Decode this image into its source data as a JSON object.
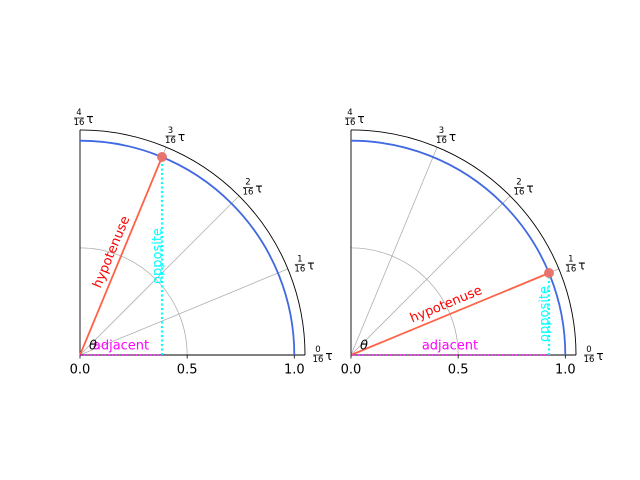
{
  "chart_data": [
    {
      "type": "polar-quarter",
      "theta_tick_labels": [
        {
          "num": "0",
          "den": "16",
          "unit": "τ",
          "fraction": 0
        },
        {
          "num": "1",
          "den": "16",
          "unit": "τ",
          "fraction": 0.0625
        },
        {
          "num": "2",
          "den": "16",
          "unit": "τ",
          "fraction": 0.125
        },
        {
          "num": "3",
          "den": "16",
          "unit": "τ",
          "fraction": 0.1875
        },
        {
          "num": "4",
          "den": "16",
          "unit": "τ",
          "fraction": 0.25
        }
      ],
      "r_tick_labels": [
        "0.0",
        "0.5",
        "1.0"
      ],
      "r_ticks": [
        0,
        0.5,
        1.0
      ],
      "rlim": [
        0,
        1.05
      ],
      "unit_circle_radius": 1.0,
      "theta_marker_radius": 0.5,
      "point": {
        "r": 1.0,
        "theta_deg": 67.5
      },
      "labels": {
        "theta": "θ",
        "hypotenuse": "hypotenuse",
        "opposite": "opposite",
        "adjacent": "adjacent"
      },
      "colors": {
        "circle": "#4169e1",
        "hypotenuse": "#ff6347",
        "hypotenuse_text": "#ff0000",
        "opposite": "#00ffff",
        "adjacent": "#ff00ff",
        "point": "#e8706a",
        "grid": "#b0b0b0"
      }
    },
    {
      "type": "polar-quarter",
      "theta_tick_labels": [
        {
          "num": "0",
          "den": "16",
          "unit": "τ",
          "fraction": 0
        },
        {
          "num": "1",
          "den": "16",
          "unit": "τ",
          "fraction": 0.0625
        },
        {
          "num": "2",
          "den": "16",
          "unit": "τ",
          "fraction": 0.125
        },
        {
          "num": "3",
          "den": "16",
          "unit": "τ",
          "fraction": 0.1875
        },
        {
          "num": "4",
          "den": "16",
          "unit": "τ",
          "fraction": 0.25
        }
      ],
      "r_tick_labels": [
        "0.0",
        "0.5",
        "1.0"
      ],
      "r_ticks": [
        0,
        0.5,
        1.0
      ],
      "rlim": [
        0,
        1.05
      ],
      "unit_circle_radius": 1.0,
      "theta_marker_radius": 0.5,
      "point": {
        "r": 1.0,
        "theta_deg": 22.5
      },
      "labels": {
        "theta": "θ",
        "hypotenuse": "hypotenuse",
        "opposite": "opposite",
        "adjacent": "adjacent"
      },
      "colors": {
        "circle": "#4169e1",
        "hypotenuse": "#ff6347",
        "hypotenuse_text": "#ff0000",
        "opposite": "#00ffff",
        "adjacent": "#ff00ff",
        "point": "#e8706a",
        "grid": "#b0b0b0"
      }
    }
  ]
}
